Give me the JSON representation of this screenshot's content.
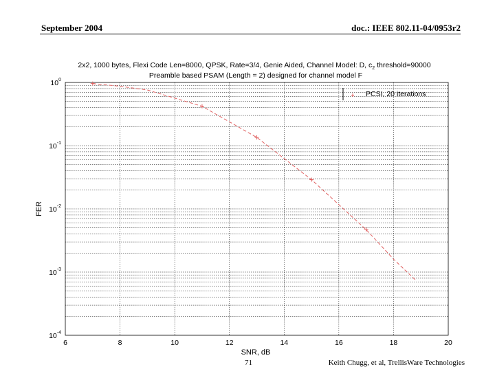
{
  "header": {
    "left": "September 2004",
    "right": "doc.: IEEE 802.11-04/0953r2"
  },
  "footer": {
    "slide_number": "71",
    "author": "Keith Chugg, et al, TrellisWare Technologies"
  },
  "chart_data": {
    "type": "line",
    "title_line1": "2x2, 1000 bytes, Flexi Code Len=8000, QPSK, Rate=3/4, Genie Aided, Channel Model: D, c",
    "title_sub": "2",
    "title_line1_tail": " threshold=90000",
    "title_line2": "Preamble based PSAM (Length = 2) designed for channel model F",
    "xlabel": "SNR, dB",
    "ylabel": "FER",
    "xlim": [
      6,
      20
    ],
    "ylim": [
      0.0001,
      1
    ],
    "yscale": "log",
    "x_ticks": [
      "6",
      "8",
      "10",
      "12",
      "14",
      "16",
      "18",
      "20"
    ],
    "y_ticks": [
      {
        "base": "10",
        "exp": "0"
      },
      {
        "base": "10",
        "exp": "-1"
      },
      {
        "base": "10",
        "exp": "-2"
      },
      {
        "base": "10",
        "exp": "-3"
      },
      {
        "base": "10",
        "exp": "-4"
      }
    ],
    "grid": true,
    "legend_position": "top-right",
    "series": [
      {
        "name": "PCSI, 20 iterations",
        "color": "#e06060",
        "x": [
          7,
          8,
          9,
          11,
          13,
          15,
          17,
          18,
          18.8
        ],
        "y": [
          0.96,
          0.87,
          0.76,
          0.42,
          0.135,
          0.029,
          0.0047,
          0.0016,
          0.00075
        ],
        "marker_x": [
          7,
          11,
          13,
          15,
          17
        ],
        "marker_y": [
          0.96,
          0.42,
          0.135,
          0.029,
          0.0047
        ]
      }
    ]
  }
}
